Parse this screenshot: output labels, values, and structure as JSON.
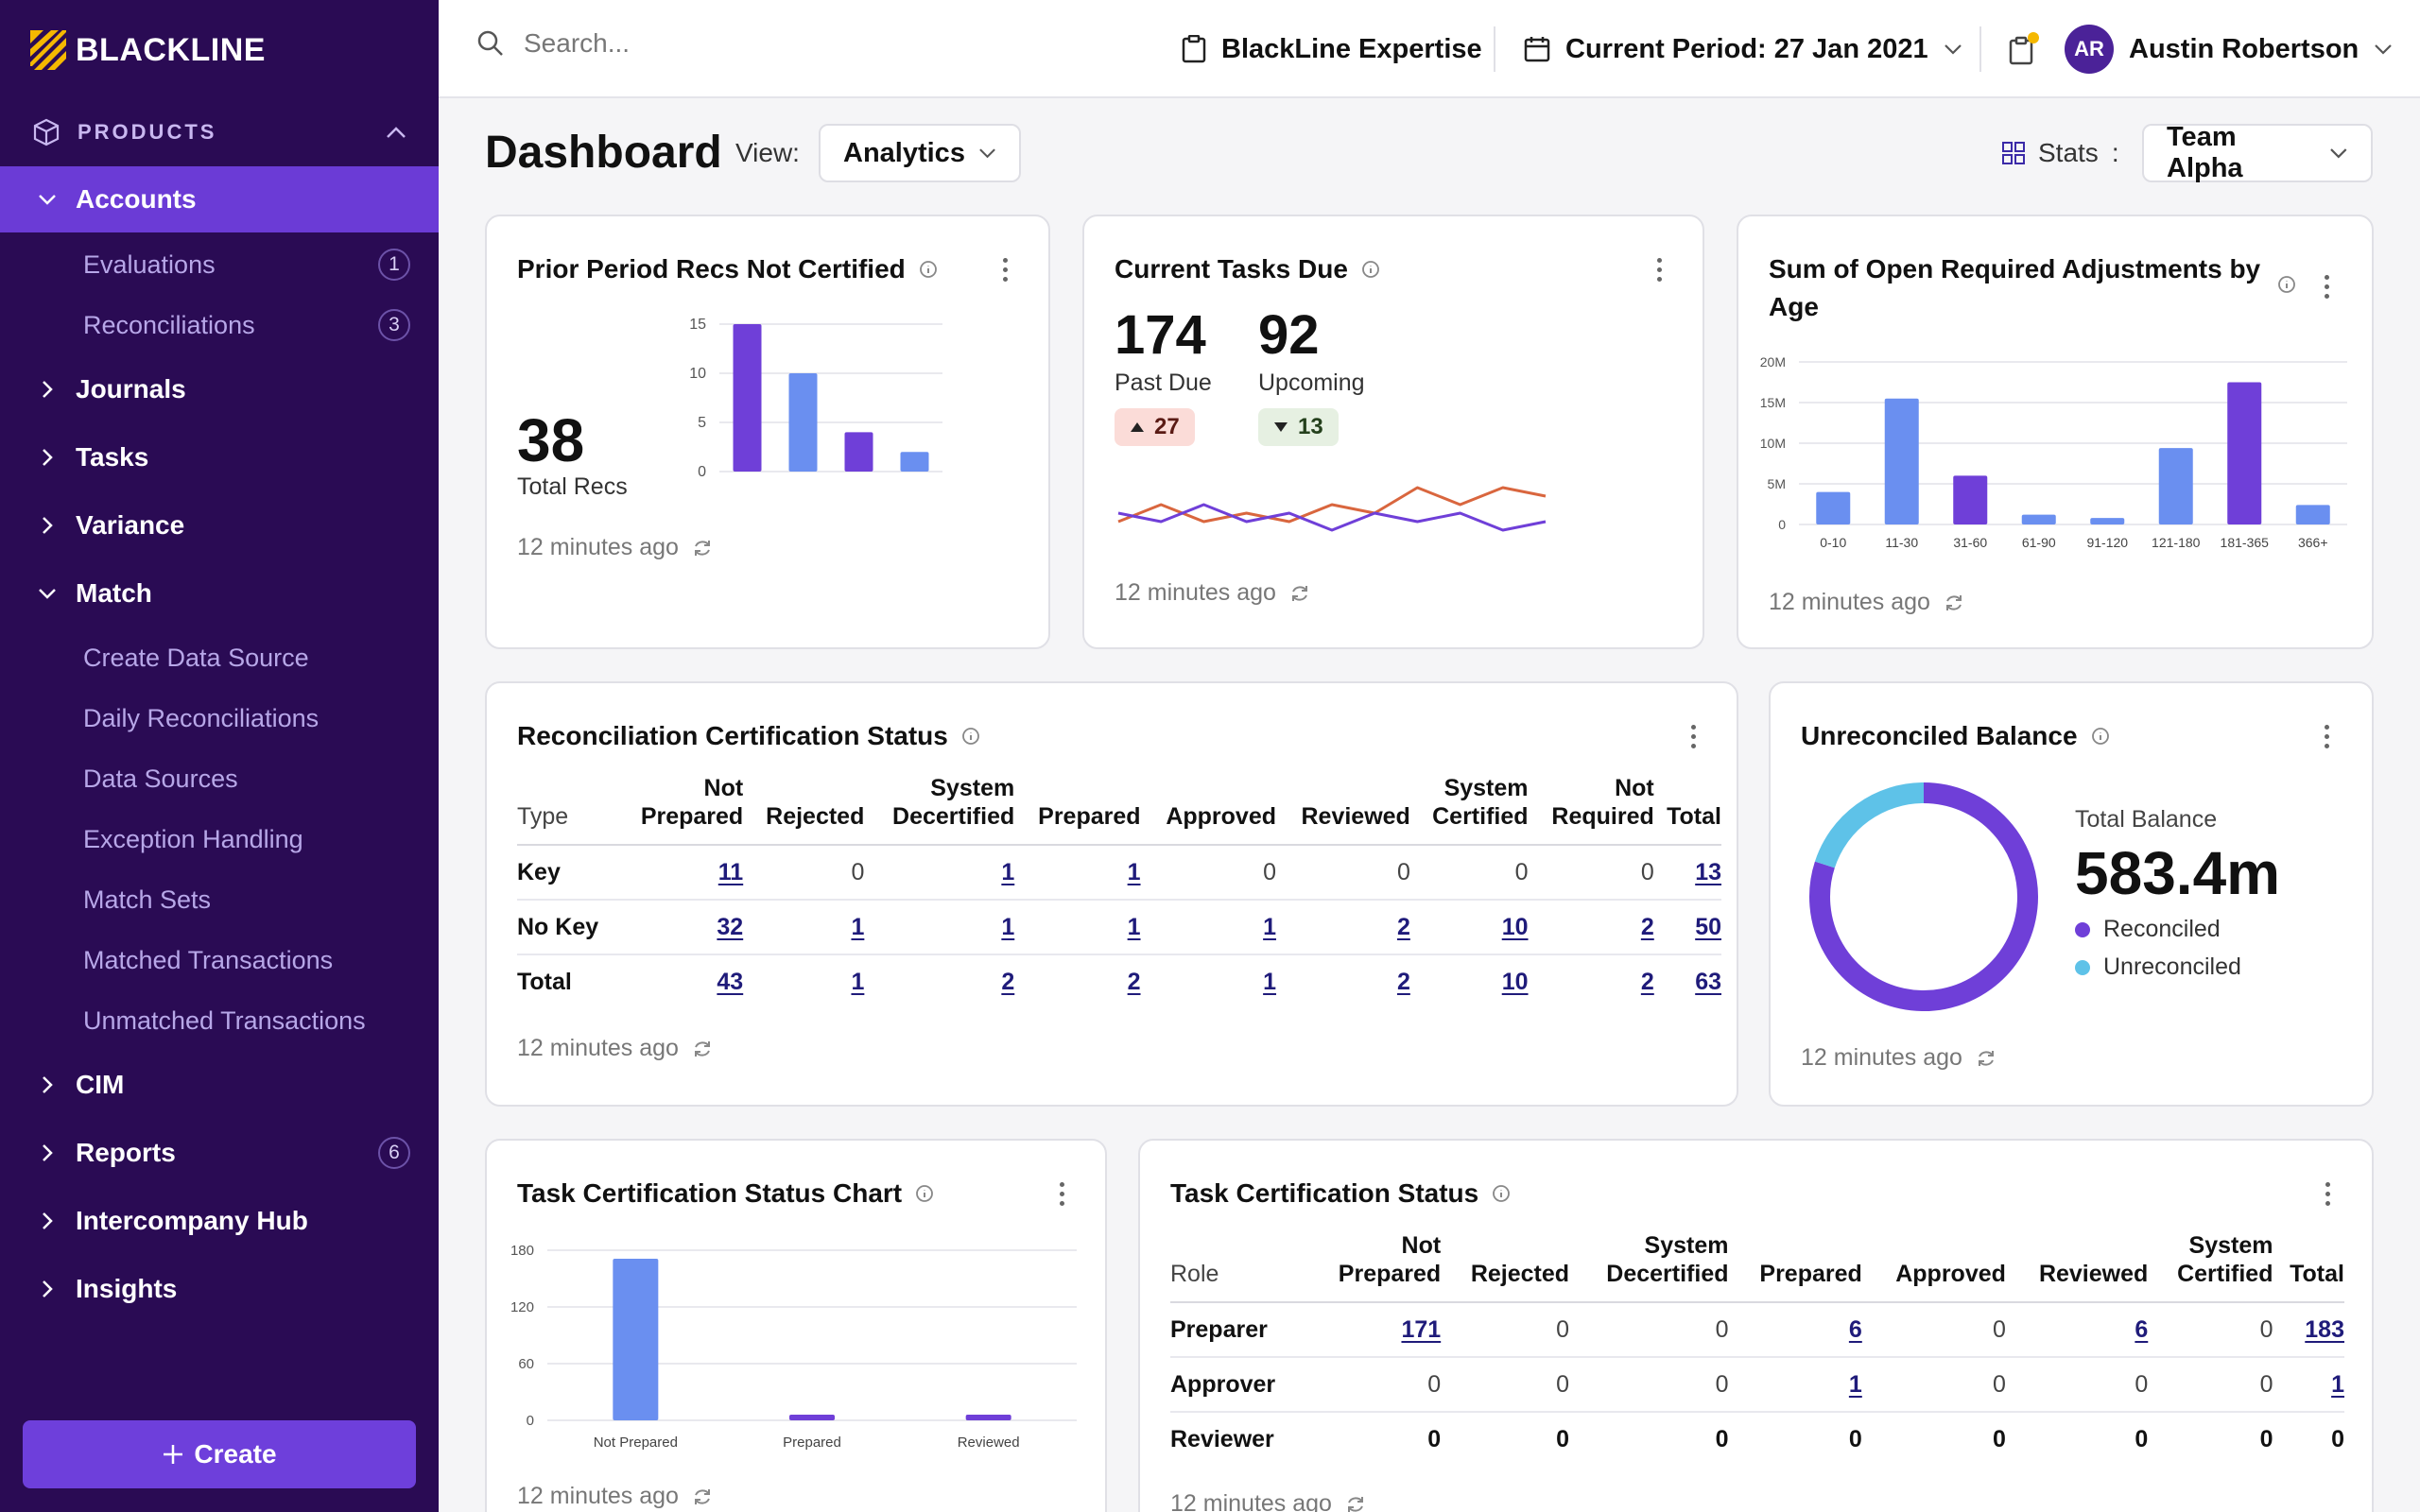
{
  "brand": {
    "name": "BLACKLINE"
  },
  "sidebar": {
    "section_label": "PRODUCTS",
    "accounts": {
      "label": "Accounts",
      "children": [
        {
          "label": "Evaluations",
          "badge": "1"
        },
        {
          "label": "Reconciliations",
          "badge": "3"
        }
      ]
    },
    "journals": "Journals",
    "tasks": "Tasks",
    "variance": "Variance",
    "match": {
      "label": "Match",
      "children": [
        "Create Data Source",
        "Daily Reconciliations",
        "Data Sources",
        "Exception Handling",
        "Match Sets",
        "Matched Transactions",
        "Unmatched Transactions"
      ]
    },
    "cim": "CIM",
    "reports": {
      "label": "Reports",
      "badge": "6"
    },
    "intercompany": "Intercompany Hub",
    "insights": "Insights",
    "create_label": "Create"
  },
  "topbar": {
    "search_placeholder": "Search...",
    "expertise": "BlackLine Expertise",
    "period": "Current Period: 27 Jan 2021",
    "user_initials": "AR",
    "user_name": "Austin Robertson"
  },
  "dashboard": {
    "title": "Dashboard",
    "view_label": "View:",
    "view_value": "Analytics",
    "stats_label": "Stats",
    "stats_colon": ":",
    "team": "Team Alpha"
  },
  "updated_text": "12 minutes ago",
  "cards": {
    "prior": {
      "title": "Prior Period Recs Not Certified",
      "total": "38",
      "total_label": "Total Recs"
    },
    "tasks_due": {
      "title": "Current Tasks Due",
      "past_due": "174",
      "past_due_label": "Past Due",
      "upcoming": "92",
      "upcoming_label": "Upcoming",
      "past_change": "27",
      "upcoming_change": "13"
    },
    "adjustments": {
      "title_line1": "Sum of Open Required Adjustments by",
      "title_line2": "Age"
    },
    "rec_status": {
      "title": "Reconciliation Certification Status",
      "headers": [
        [
          "Type",
          ""
        ],
        [
          "Not",
          "Prepared"
        ],
        [
          "",
          "Rejected"
        ],
        [
          "System",
          "Decertified"
        ],
        [
          "",
          "Prepared"
        ],
        [
          "",
          "Approved"
        ],
        [
          "",
          "Reviewed"
        ],
        [
          "System",
          "Certified"
        ],
        [
          "Not",
          "Required"
        ],
        [
          "",
          "Total"
        ]
      ],
      "rows": [
        {
          "label": "Key",
          "cells": [
            "11",
            "0",
            "1",
            "1",
            "0",
            "0",
            "0",
            "0",
            "13"
          ],
          "links": [
            1,
            0,
            1,
            1,
            0,
            0,
            0,
            0,
            1
          ]
        },
        {
          "label": "No Key",
          "cells": [
            "32",
            "1",
            "1",
            "1",
            "1",
            "2",
            "10",
            "2",
            "50"
          ],
          "links": [
            1,
            1,
            1,
            1,
            1,
            1,
            1,
            1,
            1
          ]
        },
        {
          "label": "Total",
          "cells": [
            "43",
            "1",
            "2",
            "2",
            "1",
            "2",
            "10",
            "2",
            "63"
          ],
          "links": [
            1,
            1,
            1,
            1,
            1,
            1,
            1,
            1,
            1
          ]
        }
      ]
    },
    "unreconciled": {
      "title": "Unreconciled Balance",
      "total_label": "Total Balance",
      "total": "583.4m",
      "legend": [
        {
          "name": "Reconciled",
          "color": "#6f3fd8"
        },
        {
          "name": "Unreconciled",
          "color": "#5ec2e8"
        }
      ]
    },
    "task_chart": {
      "title": "Task Certification Status Chart"
    },
    "task_status": {
      "title": "Task Certification Status",
      "headers": [
        [
          "Role",
          ""
        ],
        [
          "Not",
          "Prepared"
        ],
        [
          "",
          "Rejected"
        ],
        [
          "System",
          "Decertified"
        ],
        [
          "",
          "Prepared"
        ],
        [
          "",
          "Approved"
        ],
        [
          "",
          "Reviewed"
        ],
        [
          "System",
          "Certified"
        ],
        [
          "",
          "Total"
        ]
      ],
      "rows": [
        {
          "label": "Preparer",
          "cells": [
            "171",
            "0",
            "0",
            "6",
            "0",
            "6",
            "0",
            "183"
          ],
          "links": [
            1,
            0,
            0,
            1,
            0,
            1,
            0,
            1
          ],
          "bold": false
        },
        {
          "label": "Approver",
          "cells": [
            "0",
            "0",
            "0",
            "1",
            "0",
            "0",
            "0",
            "1"
          ],
          "links": [
            0,
            0,
            0,
            1,
            0,
            0,
            0,
            1
          ],
          "bold": false
        },
        {
          "label": "Reviewer",
          "cells": [
            "0",
            "0",
            "0",
            "0",
            "0",
            "0",
            "0",
            "0"
          ],
          "links": [
            0,
            0,
            0,
            0,
            0,
            0,
            0,
            0
          ],
          "bold": true
        }
      ]
    }
  },
  "colors": {
    "purple": "#6f3fd8",
    "blue": "#6a8ff0",
    "cyan": "#5ec2e8",
    "orange": "#d9663e",
    "sidebar": "#2a0b54"
  },
  "chart_data": [
    {
      "type": "bar",
      "categories": [
        "",
        "",
        "",
        ""
      ],
      "values": [
        15,
        10,
        4,
        2
      ],
      "colors": [
        "#6f3fd8",
        "#6a8ff0",
        "#6f3fd8",
        "#6a8ff0"
      ],
      "yticks": [
        0,
        5,
        10,
        15
      ],
      "ylim": [
        0,
        15
      ]
    },
    {
      "type": "line",
      "x": [
        1,
        2,
        3,
        4,
        5,
        6,
        7,
        8,
        9,
        10,
        11
      ],
      "series": [
        {
          "values": [
            3,
            5,
            3,
            4,
            3,
            5,
            4,
            7,
            5,
            7,
            6
          ],
          "color": "#d9663e"
        },
        {
          "values": [
            4,
            3,
            5,
            3,
            4,
            2,
            4,
            3,
            4,
            2,
            3
          ],
          "color": "#6f3fd8"
        }
      ],
      "ylim": [
        0,
        8
      ]
    },
    {
      "type": "bar",
      "categories": [
        "0-10",
        "11-30",
        "31-60",
        "61-90",
        "91-120",
        "121-180",
        "181-365",
        "366+"
      ],
      "values": [
        4,
        15.5,
        6,
        1.2,
        0.8,
        9.4,
        17.5,
        2.4
      ],
      "colors": [
        "#6a8ff0",
        "#6a8ff0",
        "#6f3fd8",
        "#6a8ff0",
        "#6a8ff0",
        "#6a8ff0",
        "#6f3fd8",
        "#6a8ff0"
      ],
      "yticks": [
        0,
        5,
        10,
        15,
        20
      ],
      "ytick_labels": [
        "0",
        "5M",
        "10M",
        "15M",
        "20M"
      ],
      "ylim": [
        0,
        20
      ]
    },
    {
      "type": "pie",
      "series": [
        {
          "name": "Reconciled",
          "value": 80
        },
        {
          "name": "Unreconciled",
          "value": 20
        }
      ]
    },
    {
      "type": "bar",
      "categories": [
        "Not Prepared",
        "Prepared",
        "Reviewed"
      ],
      "values": [
        171,
        6,
        6
      ],
      "colors": [
        "#6a8ff0",
        "#6f3fd8",
        "#6f3fd8"
      ],
      "yticks": [
        0,
        60,
        120,
        180
      ],
      "ylim": [
        0,
        180
      ]
    }
  ]
}
